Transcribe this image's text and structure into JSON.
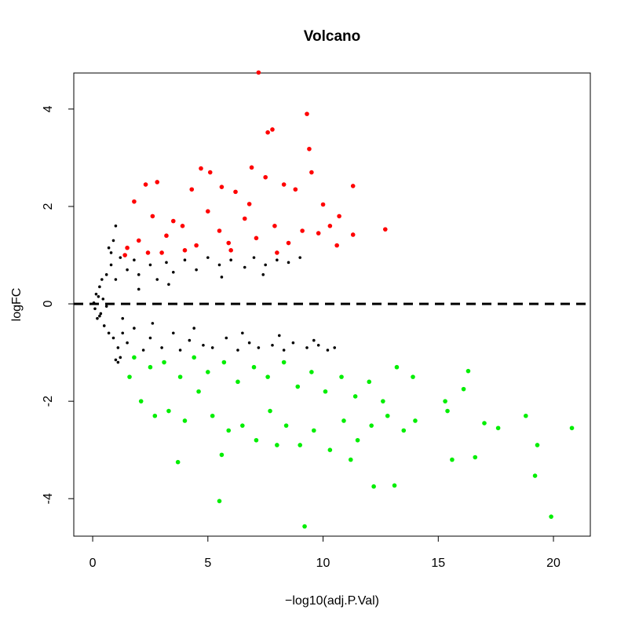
{
  "chart_data": {
    "type": "scatter",
    "title": "Volcano",
    "x_label": "−log10(adj.P.Val)",
    "y_label": "logFC",
    "xlim": [
      -0.82,
      21.6
    ],
    "ylim": [
      -4.77,
      4.74
    ],
    "xticks": [
      0,
      5,
      10,
      15,
      20
    ],
    "yticks": [
      -4,
      -2,
      0,
      2,
      4
    ],
    "hline": 0,
    "series": [
      {
        "color": "#000000",
        "size": 1.8,
        "x": [
          0.05,
          0.1,
          0.15,
          0.2,
          0.3,
          0.3,
          0.4,
          0.5,
          0.6,
          0.7,
          0.8,
          0.9,
          1.0,
          1.1,
          1.2,
          1.3,
          1.5,
          1.5,
          1.8,
          1.8,
          2.0,
          2.2,
          2.5,
          2.5,
          2.8,
          3.0,
          3.2,
          3.5,
          3.5,
          3.8,
          4.0,
          4.2,
          4.5,
          4.8,
          5.0,
          5.2,
          5.5,
          5.8,
          6.0,
          6.3,
          6.6,
          6.8,
          7.0,
          7.2,
          7.5,
          7.8,
          8.0,
          8.3,
          8.5,
          8.7,
          9.0,
          9.3,
          9.8,
          10.2,
          0.9,
          1.0,
          0.7,
          1.2,
          1.1,
          0.45,
          0.6,
          2.0,
          1.0,
          0.8,
          1.3,
          2.6,
          3.3,
          4.4,
          5.6,
          6.5,
          7.4,
          8.1,
          9.6,
          10.5,
          0.25,
          0.35
        ],
        "values": [
          0.02,
          -0.1,
          0.2,
          -0.3,
          0.35,
          -0.25,
          0.5,
          -0.45,
          0.6,
          -0.6,
          0.8,
          -0.7,
          0.5,
          -0.9,
          0.95,
          -0.6,
          0.7,
          -0.8,
          0.9,
          -0.5,
          0.6,
          -0.95,
          0.8,
          -0.7,
          0.5,
          -0.9,
          0.85,
          -0.6,
          0.65,
          -0.95,
          0.9,
          -0.75,
          0.7,
          -0.85,
          0.95,
          -0.9,
          0.8,
          -0.7,
          0.9,
          -0.95,
          0.75,
          -0.8,
          0.95,
          -0.9,
          0.8,
          -0.85,
          0.9,
          -0.95,
          0.85,
          -0.8,
          0.95,
          -0.9,
          -0.85,
          -0.95,
          1.3,
          1.6,
          1.15,
          -1.1,
          -1.2,
          0.1,
          -0.05,
          0.3,
          -1.15,
          1.05,
          -0.3,
          -0.4,
          0.4,
          -0.5,
          0.55,
          -0.6,
          0.6,
          -0.65,
          -0.75,
          -0.9,
          0.15,
          -0.2
        ]
      },
      {
        "color": "#ff0000",
        "size": 2.8,
        "x": [
          7.2,
          9.3,
          7.8,
          7.6,
          9.4,
          4.7,
          6.9,
          11.3,
          12.7,
          11.3,
          10.0,
          10.7,
          1.8,
          2.3,
          2.8,
          3.5,
          4.3,
          5.1,
          5.6,
          6.2,
          6.8,
          7.5,
          8.3,
          8.8,
          9.5,
          10.3,
          1.5,
          2.0,
          2.6,
          3.2,
          3.9,
          4.5,
          5.0,
          5.5,
          6.0,
          6.6,
          7.1,
          7.9,
          8.5,
          9.1,
          9.8,
          10.6,
          2.4,
          4.0,
          5.9,
          8.0,
          1.4,
          3.0
        ],
        "values": [
          4.75,
          3.9,
          3.58,
          3.52,
          3.18,
          2.78,
          2.8,
          2.42,
          1.53,
          1.42,
          2.04,
          1.8,
          2.1,
          2.45,
          2.5,
          1.7,
          2.35,
          2.7,
          2.4,
          2.3,
          2.05,
          2.6,
          2.45,
          2.35,
          2.7,
          1.6,
          1.15,
          1.3,
          1.8,
          1.4,
          1.6,
          1.2,
          1.9,
          1.5,
          1.1,
          1.75,
          1.35,
          1.6,
          1.25,
          1.5,
          1.45,
          1.2,
          1.05,
          1.1,
          1.25,
          1.05,
          1.0,
          1.05
        ]
      },
      {
        "color": "#00ee00",
        "size": 2.8,
        "x": [
          9.2,
          19.9,
          5.5,
          19.2,
          20.8,
          18.8,
          17.6,
          16.3,
          12.2,
          13.1,
          3.7,
          5.6,
          8.0,
          11.2,
          14.0,
          15.3,
          15.6,
          16.6,
          17.0,
          19.3,
          1.6,
          2.1,
          2.7,
          3.3,
          4.0,
          4.6,
          5.2,
          5.9,
          6.5,
          7.1,
          7.7,
          8.4,
          9.0,
          9.6,
          10.3,
          10.9,
          11.5,
          12.1,
          12.8,
          13.5,
          1.8,
          2.5,
          3.1,
          3.8,
          4.4,
          5.0,
          5.7,
          6.3,
          7.0,
          7.6,
          8.3,
          8.9,
          9.5,
          10.1,
          10.8,
          11.4,
          12.0,
          12.6,
          13.2,
          13.9,
          15.4,
          16.1
        ],
        "values": [
          -4.57,
          -4.37,
          -4.05,
          -3.53,
          -2.55,
          -2.3,
          -2.55,
          -1.38,
          -3.75,
          -3.73,
          -3.25,
          -3.1,
          -2.9,
          -3.2,
          -2.4,
          -2.0,
          -3.2,
          -3.15,
          -2.45,
          -2.9,
          -1.5,
          -2.0,
          -2.3,
          -2.2,
          -2.4,
          -1.8,
          -2.3,
          -2.6,
          -2.5,
          -2.8,
          -2.2,
          -2.5,
          -2.9,
          -2.6,
          -3.0,
          -2.4,
          -2.8,
          -2.5,
          -2.3,
          -2.6,
          -1.1,
          -1.3,
          -1.2,
          -1.5,
          -1.1,
          -1.4,
          -1.2,
          -1.6,
          -1.3,
          -1.5,
          -1.2,
          -1.7,
          -1.4,
          -1.8,
          -1.5,
          -1.9,
          -1.6,
          -2.0,
          -1.3,
          -1.5,
          -2.2,
          -1.75
        ]
      }
    ]
  }
}
